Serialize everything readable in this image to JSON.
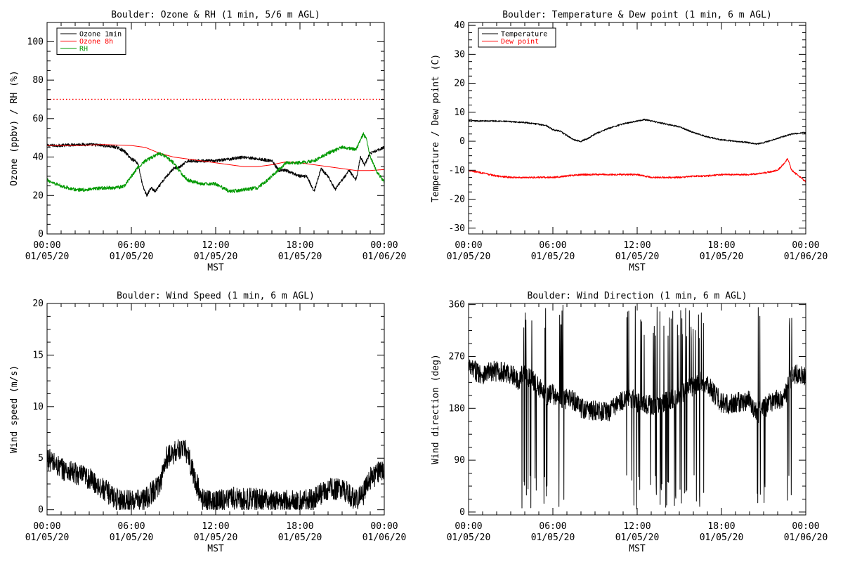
{
  "chart_data": [
    {
      "type": "line",
      "title": "Boulder: Ozone & RH (1 min, 5/6 m AGL)",
      "ylabel": "Ozone (ppbv) / RH (%)",
      "xlabel": "MST",
      "ylim": [
        0,
        110
      ],
      "yticks": [
        0,
        20,
        40,
        60,
        80,
        100
      ],
      "xlim": [
        0,
        24
      ],
      "xticks": [
        {
          "x": 0,
          "time": "00:00",
          "date": "01/05/20"
        },
        {
          "x": 6,
          "time": "06:00",
          "date": "01/05/20"
        },
        {
          "x": 12,
          "time": "12:00",
          "date": "01/05/20"
        },
        {
          "x": 18,
          "time": "18:00",
          "date": "01/05/20"
        },
        {
          "x": 24,
          "time": "00:00",
          "date": "01/06/20"
        }
      ],
      "legend": "top-left",
      "hlines": [
        {
          "y": 70,
          "color": "#ff0000",
          "style": "dotted"
        }
      ],
      "series": [
        {
          "name": "Ozone 1min",
          "color": "#000000",
          "noise": 0.8,
          "points": [
            [
              0,
              46
            ],
            [
              1,
              46
            ],
            [
              2,
              46.5
            ],
            [
              3,
              46.5
            ],
            [
              4,
              46
            ],
            [
              5,
              45
            ],
            [
              5.5,
              43
            ],
            [
              6,
              39
            ],
            [
              6.3,
              38
            ],
            [
              6.5,
              36
            ],
            [
              6.8,
              25
            ],
            [
              7.1,
              20
            ],
            [
              7.4,
              24
            ],
            [
              7.7,
              22
            ],
            [
              8,
              25
            ],
            [
              8.5,
              30
            ],
            [
              9,
              34
            ],
            [
              9.5,
              35
            ],
            [
              10,
              38
            ],
            [
              11,
              38
            ],
            [
              12,
              38
            ],
            [
              13,
              39
            ],
            [
              14,
              40
            ],
            [
              15,
              39
            ],
            [
              16,
              38
            ],
            [
              16.5,
              33
            ],
            [
              17,
              33
            ],
            [
              18,
              30
            ],
            [
              18.5,
              30
            ],
            [
              19,
              22
            ],
            [
              19.5,
              34
            ],
            [
              20,
              30
            ],
            [
              20.5,
              23
            ],
            [
              21,
              28
            ],
            [
              21.5,
              33
            ],
            [
              22,
              28
            ],
            [
              22.3,
              40
            ],
            [
              22.6,
              36
            ],
            [
              23,
              42
            ],
            [
              24,
              45
            ]
          ]
        },
        {
          "name": "Ozone 8h",
          "color": "#ff0000",
          "noise": 0,
          "points": [
            [
              0,
              46
            ],
            [
              2,
              46
            ],
            [
              4,
              46.5
            ],
            [
              6,
              46
            ],
            [
              7,
              45
            ],
            [
              8,
              42
            ],
            [
              9,
              40
            ],
            [
              10,
              39
            ],
            [
              11,
              38
            ],
            [
              12,
              37
            ],
            [
              13,
              36
            ],
            [
              14,
              35
            ],
            [
              15,
              35
            ],
            [
              16,
              36
            ],
            [
              17,
              37.5
            ],
            [
              18,
              37
            ],
            [
              19,
              36
            ],
            [
              20,
              35
            ],
            [
              21,
              34
            ],
            [
              22,
              33
            ],
            [
              23,
              33
            ],
            [
              24,
              33.5
            ]
          ]
        },
        {
          "name": "RH",
          "color": "#009900",
          "noise": 0.9,
          "points": [
            [
              0,
              28
            ],
            [
              1,
              25
            ],
            [
              2,
              23
            ],
            [
              3,
              23
            ],
            [
              4,
              24
            ],
            [
              5,
              24
            ],
            [
              5.5,
              25
            ],
            [
              6,
              30
            ],
            [
              6.5,
              35
            ],
            [
              7,
              38
            ],
            [
              7.5,
              40
            ],
            [
              8,
              42
            ],
            [
              8.5,
              40
            ],
            [
              9,
              37
            ],
            [
              9.5,
              32
            ],
            [
              10,
              28
            ],
            [
              11,
              26
            ],
            [
              12,
              26
            ],
            [
              13,
              22
            ],
            [
              14,
              23
            ],
            [
              15,
              24
            ],
            [
              16,
              30
            ],
            [
              17,
              37
            ],
            [
              18,
              37
            ],
            [
              19,
              38
            ],
            [
              20,
              42
            ],
            [
              21,
              45
            ],
            [
              22,
              44
            ],
            [
              22.5,
              52
            ],
            [
              22.7,
              50
            ],
            [
              23,
              40
            ],
            [
              23.5,
              32
            ],
            [
              24,
              27
            ]
          ]
        }
      ]
    },
    {
      "type": "line",
      "title": "Boulder: Temperature & Dew point (1 min, 6 m AGL)",
      "ylabel": "Temperature / Dew point (C)",
      "xlabel": "MST",
      "ylim": [
        -32,
        41
      ],
      "yticks": [
        -30,
        -20,
        -10,
        0,
        10,
        20,
        30,
        40
      ],
      "xlim": [
        0,
        24
      ],
      "xticks": [
        {
          "x": 0,
          "time": "00:00",
          "date": "01/05/20"
        },
        {
          "x": 6,
          "time": "06:00",
          "date": "01/05/20"
        },
        {
          "x": 12,
          "time": "12:00",
          "date": "01/05/20"
        },
        {
          "x": 18,
          "time": "18:00",
          "date": "01/05/20"
        },
        {
          "x": 24,
          "time": "00:00",
          "date": "01/06/20"
        }
      ],
      "legend": "top-left",
      "hlines": [],
      "series": [
        {
          "name": "Temperature",
          "color": "#000000",
          "noise": 0.25,
          "points": [
            [
              0,
              7
            ],
            [
              2,
              7
            ],
            [
              4,
              6.5
            ],
            [
              5.5,
              5.5
            ],
            [
              6,
              4
            ],
            [
              6.5,
              3.5
            ],
            [
              7,
              2
            ],
            [
              7.5,
              0.5
            ],
            [
              8,
              0
            ],
            [
              8.5,
              1
            ],
            [
              9,
              2.5
            ],
            [
              10,
              4.5
            ],
            [
              11,
              6
            ],
            [
              12,
              7
            ],
            [
              12.5,
              7.5
            ],
            [
              13,
              7
            ],
            [
              14,
              6
            ],
            [
              15,
              5
            ],
            [
              16,
              3
            ],
            [
              17,
              1.5
            ],
            [
              18,
              0.5
            ],
            [
              19,
              0
            ],
            [
              20,
              -0.5
            ],
            [
              20.5,
              -1
            ],
            [
              21,
              -0.5
            ],
            [
              22,
              1
            ],
            [
              23,
              2.5
            ],
            [
              24,
              3
            ]
          ]
        },
        {
          "name": "Dew point",
          "color": "#ff0000",
          "noise": 0.3,
          "points": [
            [
              0,
              -10
            ],
            [
              1,
              -11
            ],
            [
              2,
              -12
            ],
            [
              3,
              -12.5
            ],
            [
              4,
              -12.5
            ],
            [
              5,
              -12.5
            ],
            [
              6,
              -12.5
            ],
            [
              7,
              -12
            ],
            [
              8,
              -11.5
            ],
            [
              9,
              -11.5
            ],
            [
              10,
              -11.5
            ],
            [
              11,
              -11.5
            ],
            [
              12,
              -11.5
            ],
            [
              13,
              -12.5
            ],
            [
              14,
              -12.5
            ],
            [
              15,
              -12.5
            ],
            [
              16,
              -12
            ],
            [
              17,
              -12
            ],
            [
              18,
              -11.5
            ],
            [
              19,
              -11.5
            ],
            [
              20,
              -11.5
            ],
            [
              21,
              -11
            ],
            [
              22,
              -10
            ],
            [
              22.4,
              -8
            ],
            [
              22.7,
              -6
            ],
            [
              23,
              -10
            ],
            [
              23.5,
              -12
            ],
            [
              24,
              -14
            ]
          ]
        }
      ]
    },
    {
      "type": "line",
      "title": "Boulder: Wind Speed (1 min, 6 m AGL)",
      "ylabel": "Wind speed (m/s)",
      "xlabel": "MST",
      "ylim": [
        -0.5,
        20
      ],
      "yticks": [
        0,
        5,
        10,
        15,
        20
      ],
      "xlim": [
        0,
        24
      ],
      "xticks": [
        {
          "x": 0,
          "time": "00:00",
          "date": "01/05/20"
        },
        {
          "x": 6,
          "time": "06:00",
          "date": "01/05/20"
        },
        {
          "x": 12,
          "time": "12:00",
          "date": "01/05/20"
        },
        {
          "x": 18,
          "time": "18:00",
          "date": "01/05/20"
        },
        {
          "x": 24,
          "time": "00:00",
          "date": "01/06/20"
        }
      ],
      "legend": "none",
      "hlines": [],
      "series": [
        {
          "name": "",
          "color": "#000000",
          "noise": 1.1,
          "points": [
            [
              0,
              5
            ],
            [
              1,
              4
            ],
            [
              2,
              3.5
            ],
            [
              3,
              3
            ],
            [
              4,
              2
            ],
            [
              5,
              1
            ],
            [
              6,
              0.8
            ],
            [
              7,
              1
            ],
            [
              8,
              2.5
            ],
            [
              8.5,
              5
            ],
            [
              9,
              5.5
            ],
            [
              9.5,
              6
            ],
            [
              10,
              5.5
            ],
            [
              10.3,
              4
            ],
            [
              11,
              1
            ],
            [
              12,
              0.8
            ],
            [
              13,
              1.2
            ],
            [
              14,
              1
            ],
            [
              15,
              1
            ],
            [
              16,
              0.8
            ],
            [
              17,
              0.8
            ],
            [
              18,
              0.8
            ],
            [
              19,
              1
            ],
            [
              20,
              2
            ],
            [
              21,
              2
            ],
            [
              22,
              1
            ],
            [
              22.5,
              1.5
            ],
            [
              23,
              3
            ],
            [
              23.5,
              3.5
            ],
            [
              24,
              4
            ]
          ]
        }
      ]
    },
    {
      "type": "line",
      "title": "Boulder: Wind Direction (1 min, 6 m AGL)",
      "ylabel": "Wind direction (deg)",
      "xlabel": "MST",
      "ylim": [
        -5,
        362
      ],
      "yticks": [
        0,
        90,
        180,
        270,
        360
      ],
      "xlim": [
        0,
        24
      ],
      "xticks": [
        {
          "x": 0,
          "time": "00:00",
          "date": "01/05/20"
        },
        {
          "x": 6,
          "time": "06:00",
          "date": "01/05/20"
        },
        {
          "x": 12,
          "time": "12:00",
          "date": "01/05/20"
        },
        {
          "x": 18,
          "time": "18:00",
          "date": "01/05/20"
        },
        {
          "x": 24,
          "time": "00:00",
          "date": "01/06/20"
        }
      ],
      "legend": "none",
      "hlines": [],
      "series": [
        {
          "name": "",
          "color": "#000000",
          "noise": 18,
          "spikes": [
            [
              3.8,
              5.6
            ],
            [
              6.4,
              6.8
            ],
            [
              11.2,
              16.8
            ],
            [
              20.5,
              21.2
            ],
            [
              22.7,
              23.0
            ]
          ],
          "points": [
            [
              0,
              250
            ],
            [
              1,
              240
            ],
            [
              2,
              245
            ],
            [
              3,
              240
            ],
            [
              3.5,
              230
            ],
            [
              4,
              240
            ],
            [
              4.5,
              230
            ],
            [
              5,
              220
            ],
            [
              5.5,
              200
            ],
            [
              6,
              205
            ],
            [
              6.5,
              200
            ],
            [
              7,
              195
            ],
            [
              7.5,
              195
            ],
            [
              8,
              180
            ],
            [
              9,
              175
            ],
            [
              10,
              175
            ],
            [
              10.5,
              185
            ],
            [
              11,
              195
            ],
            [
              11.5,
              200
            ],
            [
              12,
              190
            ],
            [
              13,
              185
            ],
            [
              14,
              190
            ],
            [
              15,
              200
            ],
            [
              16,
              220
            ],
            [
              16.5,
              230
            ],
            [
              17,
              220
            ],
            [
              17.5,
              205
            ],
            [
              18,
              190
            ],
            [
              18.5,
              185
            ],
            [
              19,
              190
            ],
            [
              20,
              195
            ],
            [
              20.5,
              170
            ],
            [
              21,
              180
            ],
            [
              21.5,
              190
            ],
            [
              22,
              195
            ],
            [
              22.5,
              200
            ],
            [
              23,
              235
            ],
            [
              23.5,
              240
            ],
            [
              24,
              235
            ]
          ]
        }
      ]
    }
  ]
}
